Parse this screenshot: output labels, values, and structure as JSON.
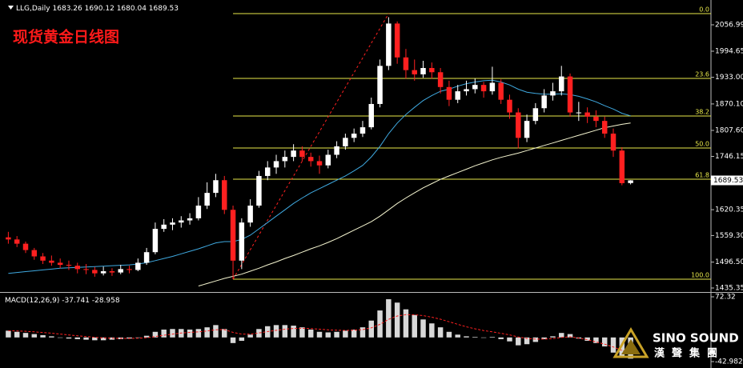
{
  "chart_data": {
    "type": "candlestick",
    "title": "现货黄金日线图",
    "symbol": "LLG,Daily",
    "up_color": "#ffffff",
    "down_color": "#ff2020",
    "open": [
      1555,
      1550,
      1540,
      1525,
      1510,
      1500,
      1495,
      1490,
      1488,
      1480,
      1478,
      1470,
      1475,
      1472,
      1480,
      1478,
      1495,
      1520,
      1575,
      1585,
      1590,
      1595,
      1600,
      1630,
      1660,
      1690,
      1620,
      1500,
      1590,
      1630,
      1700,
      1720,
      1735,
      1745,
      1760,
      1745,
      1735,
      1725,
      1750,
      1770,
      1790,
      1800,
      1815,
      1870,
      1960,
      2060,
      1980,
      1950,
      1940,
      1955,
      1945,
      1910,
      1880,
      1900,
      1905,
      1915,
      1900,
      1920,
      1880,
      1850,
      1790,
      1830,
      1860,
      1890,
      1900,
      1935,
      1850,
      1850,
      1840,
      1830,
      1800,
      1760,
      1683.26
    ],
    "high": [
      1568,
      1558,
      1545,
      1530,
      1518,
      1512,
      1505,
      1500,
      1495,
      1492,
      1485,
      1486,
      1482,
      1490,
      1488,
      1505,
      1530,
      1590,
      1598,
      1600,
      1605,
      1612,
      1650,
      1685,
      1705,
      1700,
      1630,
      1600,
      1645,
      1712,
      1735,
      1750,
      1760,
      1775,
      1770,
      1755,
      1748,
      1762,
      1782,
      1800,
      1812,
      1830,
      1885,
      1975,
      2075,
      2065,
      2000,
      1975,
      1972,
      1968,
      1955,
      1925,
      1915,
      1925,
      1930,
      1922,
      1958,
      1928,
      1892,
      1860,
      1845,
      1872,
      1905,
      1920,
      1960,
      1942,
      1875,
      1862,
      1855,
      1840,
      1812,
      1768,
      1690.12
    ],
    "low": [
      1540,
      1532,
      1518,
      1502,
      1492,
      1488,
      1482,
      1478,
      1470,
      1468,
      1462,
      1465,
      1464,
      1468,
      1470,
      1475,
      1490,
      1515,
      1568,
      1572,
      1578,
      1585,
      1595,
      1622,
      1650,
      1610,
      1456,
      1480,
      1580,
      1625,
      1690,
      1705,
      1720,
      1735,
      1735,
      1722,
      1705,
      1718,
      1742,
      1762,
      1780,
      1792,
      1810,
      1862,
      1950,
      1965,
      1930,
      1925,
      1932,
      1930,
      1895,
      1865,
      1872,
      1890,
      1895,
      1885,
      1892,
      1870,
      1835,
      1765,
      1780,
      1822,
      1850,
      1878,
      1890,
      1840,
      1830,
      1825,
      1815,
      1790,
      1745,
      1678,
      1680.04
    ],
    "close": [
      1550,
      1540,
      1525,
      1510,
      1500,
      1495,
      1490,
      1488,
      1480,
      1478,
      1470,
      1475,
      1472,
      1480,
      1478,
      1495,
      1520,
      1575,
      1585,
      1590,
      1595,
      1600,
      1630,
      1660,
      1690,
      1620,
      1500,
      1590,
      1630,
      1700,
      1720,
      1735,
      1745,
      1760,
      1745,
      1735,
      1725,
      1750,
      1770,
      1790,
      1800,
      1815,
      1870,
      1960,
      2060,
      1980,
      1950,
      1940,
      1955,
      1945,
      1910,
      1880,
      1900,
      1905,
      1915,
      1900,
      1920,
      1880,
      1850,
      1790,
      1830,
      1860,
      1890,
      1900,
      1935,
      1850,
      1850,
      1840,
      1830,
      1800,
      1760,
      1683,
      1689.53
    ],
    "ylim": [
      1427.8,
      2113.7
    ],
    "yticks": [
      2056.99,
      1994.65,
      {
        "value": 1933,
        "label": "1933.00"
      },
      {
        "value": 1870.1,
        "label": "1870.10"
      },
      {
        "value": 1807.6,
        "label": "1807.60"
      },
      1746.15,
      1620.35,
      {
        "value": 1559.3,
        "label": "1559.30"
      },
      {
        "value": 1496.5,
        "label": "1496.50"
      },
      1435.35
    ],
    "fibonacci": {
      "color": "#e8e84a",
      "levels": [
        "0.0",
        "23.6",
        "38.2",
        "50.0",
        "61.8",
        "100.0"
      ],
      "prices": [
        2083.4,
        1930.4,
        1841.6,
        1766,
        1692.3,
        1456.1
      ]
    },
    "moving_averages": [
      {
        "color": "#f5f5d0",
        "values": [
          null,
          null,
          null,
          null,
          null,
          null,
          null,
          null,
          null,
          null,
          null,
          null,
          null,
          null,
          null,
          null,
          null,
          null,
          null,
          null,
          null,
          null,
          1440,
          1446,
          1452,
          1458,
          1463,
          1468,
          1475,
          1482,
          1490,
          1497,
          1505,
          1512,
          1520,
          1528,
          1535,
          1543,
          1552,
          1562,
          1572,
          1582,
          1592,
          1605,
          1620,
          1635,
          1648,
          1660,
          1672,
          1682,
          1692,
          1700,
          1708,
          1716,
          1724,
          1731,
          1738,
          1744,
          1749,
          1754,
          1760,
          1766,
          1772,
          1778,
          1784,
          1790,
          1796,
          1802,
          1808,
          1814,
          1818,
          1822,
          1825
        ]
      },
      {
        "color": "#3fa9e0",
        "values": [
          1470,
          1472,
          1474,
          1476,
          1478,
          1480,
          1482,
          1483,
          1484,
          1485,
          1486,
          1487,
          1488,
          1489,
          1490,
          1492,
          1495,
          1500,
          1505,
          1510,
          1516,
          1522,
          1528,
          1535,
          1542,
          1545,
          1545,
          1550,
          1560,
          1575,
          1590,
          1605,
          1620,
          1635,
          1648,
          1660,
          1670,
          1680,
          1690,
          1700,
          1712,
          1725,
          1745,
          1770,
          1800,
          1825,
          1845,
          1862,
          1878,
          1890,
          1900,
          1905,
          1912,
          1918,
          1922,
          1925,
          1926,
          1922,
          1915,
          1905,
          1898,
          1895,
          1893,
          1893,
          1894,
          1892,
          1888,
          1882,
          1875,
          1866,
          1858,
          1848,
          1842
        ]
      }
    ],
    "macd": {
      "label": "MACD(12,26,9)",
      "histogram_color": "#d8d8d8",
      "signal_color": "#ff2020",
      "ylim": [
        -42.982,
        72.32
      ],
      "yticks": [
        72.32,
        -42.982
      ],
      "histogram": [
        12,
        10,
        8,
        6,
        4,
        2,
        0,
        -2,
        -3,
        -4,
        -5,
        -5,
        -4,
        -3,
        -2,
        0,
        3,
        10,
        14,
        15,
        15,
        14,
        15,
        18,
        22,
        15,
        -10,
        -6,
        5,
        15,
        20,
        22,
        22,
        21,
        18,
        14,
        10,
        9,
        10,
        12,
        14,
        18,
        30,
        48,
        68,
        62,
        50,
        40,
        32,
        25,
        18,
        10,
        5,
        2,
        1,
        0,
        1,
        -3,
        -7,
        -14,
        -12,
        -8,
        -3,
        2,
        8,
        6,
        -2,
        -6,
        -10,
        -16,
        -27,
        -33,
        -37.741
      ],
      "signal": [
        12,
        11.6,
        10.9,
        10,
        8.8,
        7.5,
        6,
        4.4,
        3,
        1.6,
        0.3,
        -0.8,
        -1.4,
        -1.7,
        -1.8,
        -1.4,
        -0.5,
        1.6,
        4,
        6,
        7.8,
        9,
        10,
        11.6,
        13.7,
        14,
        9,
        6,
        6,
        8,
        10.4,
        12.7,
        14.6,
        15.9,
        16.3,
        15.8,
        14.6,
        13.5,
        12.8,
        12.6,
        12.9,
        13.9,
        17.1,
        23.3,
        32.2,
        38.2,
        40.6,
        40.5,
        38.8,
        36,
        32.4,
        27.9,
        23.3,
        19,
        15.4,
        12.3,
        10,
        7.4,
        4.5,
        0.8,
        -1.8,
        -3,
        -3,
        -2,
        0,
        1.2,
        -1,
        -4,
        -8,
        -12,
        -17,
        -23,
        -28.958
      ]
    },
    "watermark": {
      "brand": "SINO SOUND",
      "subtitle": "漢聲集團"
    }
  }
}
